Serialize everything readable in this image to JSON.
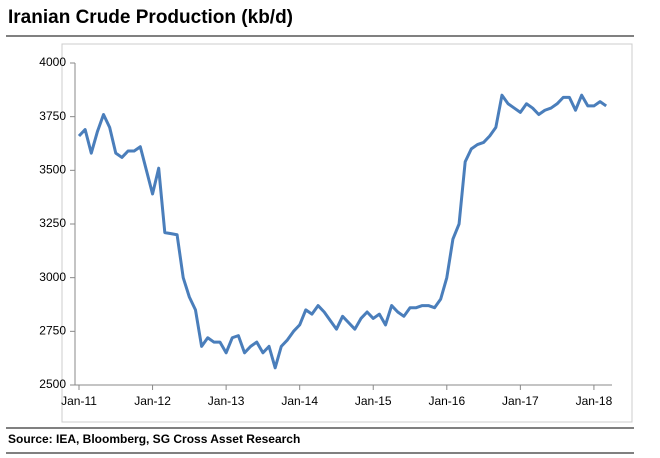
{
  "chart_data": {
    "type": "line",
    "title": "Iranian Crude Production (kb/d)",
    "source": "Source: IEA, Bloomberg, SG Cross Asset Research",
    "categories": [
      "Jan-11",
      null,
      null,
      null,
      null,
      null,
      null,
      null,
      null,
      null,
      null,
      null,
      "Jan-12",
      null,
      null,
      null,
      null,
      null,
      null,
      null,
      null,
      null,
      null,
      null,
      "Jan-13",
      null,
      null,
      null,
      null,
      null,
      null,
      null,
      null,
      null,
      null,
      null,
      "Jan-14",
      null,
      null,
      null,
      null,
      null,
      null,
      null,
      null,
      null,
      null,
      null,
      "Jan-15",
      null,
      null,
      null,
      null,
      null,
      null,
      null,
      null,
      null,
      null,
      null,
      "Jan-16",
      null,
      null,
      null,
      null,
      null,
      null,
      null,
      null,
      null,
      null,
      null,
      "Jan-17",
      null,
      null,
      null,
      null,
      null,
      null,
      null,
      null,
      null,
      null,
      null,
      "Jan-18",
      null,
      null
    ],
    "series": [
      {
        "color": "#4a7ebb",
        "values": [
          3660,
          3690,
          3580,
          3680,
          3760,
          3700,
          3580,
          3560,
          3590,
          3590,
          3610,
          3500,
          3390,
          3510,
          3210,
          3205,
          3200,
          3000,
          2910,
          2850,
          2680,
          2720,
          2700,
          2700,
          2650,
          2720,
          2730,
          2650,
          2680,
          2700,
          2650,
          2680,
          2580,
          2680,
          2710,
          2750,
          2780,
          2850,
          2830,
          2870,
          2840,
          2800,
          2760,
          2820,
          2790,
          2760,
          2810,
          2840,
          2810,
          2830,
          2780,
          2870,
          2840,
          2820,
          2860,
          2860,
          2870,
          2870,
          2860,
          2900,
          3000,
          3180,
          3250,
          3540,
          3600,
          3620,
          3630,
          3660,
          3700,
          3850,
          3810,
          3790,
          3770,
          3810,
          3790,
          3760,
          3780,
          3790,
          3810,
          3840,
          3840,
          3780,
          3850,
          3800,
          3800,
          3820,
          3800
        ]
      }
    ],
    "ylim": [
      2500,
      4000
    ],
    "yticks": [
      2500,
      2750,
      3000,
      3250,
      3500,
      3750,
      4000
    ]
  }
}
